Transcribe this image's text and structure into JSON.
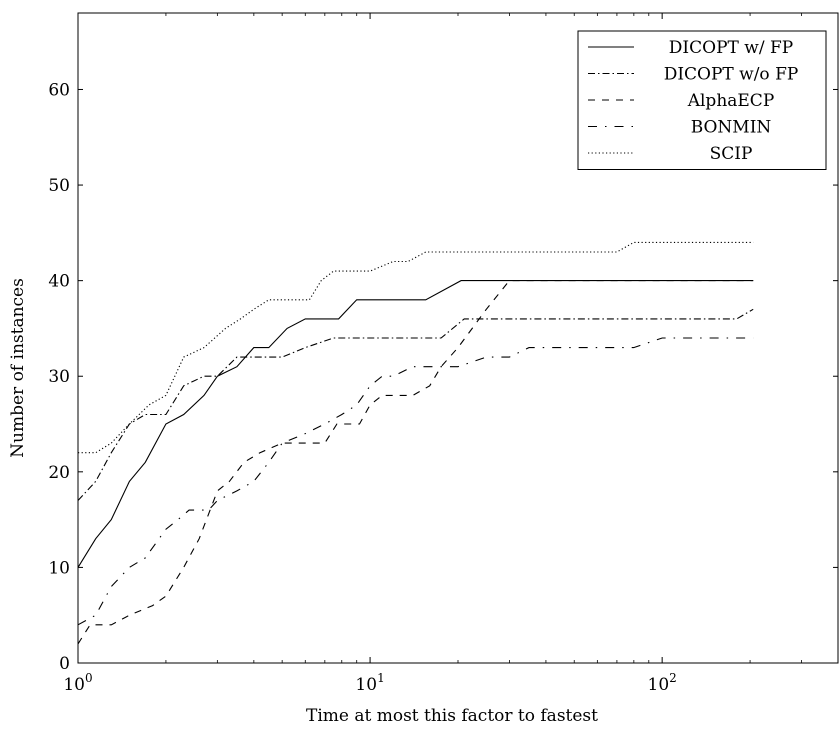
{
  "chart_data": {
    "type": "line",
    "xlabel": "Time at most this factor to fastest",
    "ylabel": "Number of instances",
    "xscale": "log",
    "xlim": [
      1,
      400
    ],
    "ylim": [
      0,
      68
    ],
    "yticks": [
      0,
      10,
      20,
      30,
      40,
      50,
      60
    ],
    "xticks": [
      {
        "value": 1,
        "base": "10",
        "exp": "0"
      },
      {
        "value": 10,
        "base": "10",
        "exp": "1"
      },
      {
        "value": 100,
        "base": "10",
        "exp": "2"
      }
    ],
    "grid": false,
    "legend_position": "top-right",
    "series": [
      {
        "name": "DICOPT w/ FP",
        "style": "solid",
        "points": [
          [
            1,
            10
          ],
          [
            1.15,
            13
          ],
          [
            1.3,
            15
          ],
          [
            1.5,
            19
          ],
          [
            1.7,
            21
          ],
          [
            2,
            25
          ],
          [
            2.3,
            26
          ],
          [
            2.7,
            28
          ],
          [
            3,
            30
          ],
          [
            3.5,
            31
          ],
          [
            4,
            33
          ],
          [
            4.5,
            33
          ],
          [
            5.2,
            35
          ],
          [
            6,
            36
          ],
          [
            7,
            36
          ],
          [
            7.8,
            36
          ],
          [
            9,
            38
          ],
          [
            12,
            38
          ],
          [
            15.5,
            38
          ],
          [
            20.5,
            40
          ],
          [
            30,
            40
          ],
          [
            50,
            40
          ],
          [
            100,
            40
          ],
          [
            205,
            40
          ]
        ]
      },
      {
        "name": "DICOPT w/o FP",
        "style": "dash-dot",
        "points": [
          [
            1,
            17
          ],
          [
            1.15,
            19
          ],
          [
            1.3,
            22
          ],
          [
            1.5,
            25
          ],
          [
            1.7,
            26
          ],
          [
            2,
            26
          ],
          [
            2.3,
            29
          ],
          [
            2.7,
            30
          ],
          [
            3,
            30
          ],
          [
            3.5,
            32
          ],
          [
            4,
            32
          ],
          [
            5,
            32
          ],
          [
            6,
            33
          ],
          [
            7.5,
            34
          ],
          [
            10,
            34
          ],
          [
            15,
            34
          ],
          [
            17.5,
            34
          ],
          [
            21,
            36
          ],
          [
            30,
            36
          ],
          [
            50,
            36
          ],
          [
            100,
            36
          ],
          [
            180,
            36
          ],
          [
            205,
            37
          ]
        ]
      },
      {
        "name": "AlphaECP",
        "style": "dashed",
        "points": [
          [
            1,
            2
          ],
          [
            1.1,
            4
          ],
          [
            1.3,
            4
          ],
          [
            1.5,
            5
          ],
          [
            1.8,
            6
          ],
          [
            2,
            7
          ],
          [
            2.3,
            10
          ],
          [
            2.6,
            13
          ],
          [
            3,
            18
          ],
          [
            3.3,
            19
          ],
          [
            3.7,
            21
          ],
          [
            4.2,
            22
          ],
          [
            5,
            23
          ],
          [
            6,
            23
          ],
          [
            7,
            23
          ],
          [
            7.7,
            25
          ],
          [
            8.5,
            25
          ],
          [
            9.2,
            25
          ],
          [
            10,
            27
          ],
          [
            11,
            28
          ],
          [
            12,
            28
          ],
          [
            14,
            28
          ],
          [
            16,
            29
          ],
          [
            17.5,
            31
          ],
          [
            20,
            33
          ],
          [
            25,
            37
          ],
          [
            30,
            40
          ],
          [
            50,
            40
          ],
          [
            100,
            40
          ],
          [
            205,
            40
          ]
        ]
      },
      {
        "name": "BONMIN",
        "style": "loose-dash-dot",
        "points": [
          [
            1,
            4
          ],
          [
            1.15,
            5
          ],
          [
            1.3,
            8
          ],
          [
            1.5,
            10
          ],
          [
            1.7,
            11
          ],
          [
            2,
            14
          ],
          [
            2.2,
            15
          ],
          [
            2.4,
            16
          ],
          [
            2.8,
            16
          ],
          [
            3,
            17
          ],
          [
            3.5,
            18
          ],
          [
            4,
            19
          ],
          [
            4.5,
            21
          ],
          [
            5,
            23
          ],
          [
            6,
            24
          ],
          [
            7,
            25
          ],
          [
            8,
            26
          ],
          [
            9,
            27
          ],
          [
            10,
            29
          ],
          [
            11,
            30
          ],
          [
            12,
            30
          ],
          [
            14,
            31
          ],
          [
            17,
            31
          ],
          [
            20,
            31
          ],
          [
            25,
            32
          ],
          [
            30,
            32
          ],
          [
            35,
            33
          ],
          [
            50,
            33
          ],
          [
            70,
            33
          ],
          [
            80,
            33
          ],
          [
            100,
            34
          ],
          [
            150,
            34
          ],
          [
            205,
            34
          ]
        ]
      },
      {
        "name": "SCIP",
        "style": "dotted",
        "points": [
          [
            1,
            22
          ],
          [
            1.15,
            22
          ],
          [
            1.3,
            23
          ],
          [
            1.5,
            25
          ],
          [
            1.75,
            27
          ],
          [
            2,
            28
          ],
          [
            2.3,
            32
          ],
          [
            2.7,
            33
          ],
          [
            3.2,
            35
          ],
          [
            3.6,
            36
          ],
          [
            4,
            37
          ],
          [
            4.5,
            38
          ],
          [
            5.5,
            38
          ],
          [
            6.2,
            38
          ],
          [
            6.8,
            40
          ],
          [
            7.5,
            41
          ],
          [
            10,
            41
          ],
          [
            12,
            42
          ],
          [
            13.5,
            42
          ],
          [
            15.5,
            43
          ],
          [
            20,
            43
          ],
          [
            40,
            43
          ],
          [
            55,
            43
          ],
          [
            70,
            43
          ],
          [
            80,
            44
          ],
          [
            100,
            44
          ],
          [
            205,
            44
          ]
        ]
      }
    ]
  }
}
